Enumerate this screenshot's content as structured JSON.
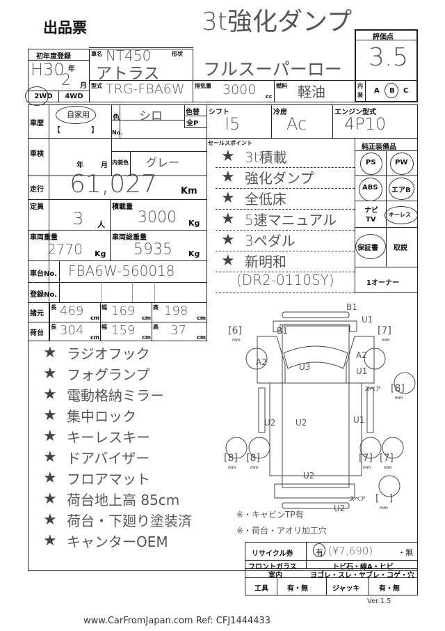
{
  "title": "出品票",
  "headline": {
    "line1": "3t強化ダンプ",
    "line2": "フルスーパーロー"
  },
  "registration": {
    "label": "初年度登録",
    "year": "H30",
    "year_unit": "年",
    "month": "2",
    "month_unit": "月",
    "drive_options": [
      "2WD",
      "4WD"
    ],
    "drive_selected": "2WD"
  },
  "car": {
    "name_label": "車名",
    "name": "NT450",
    "model_name": "アトラス",
    "shape_label": "形状",
    "type_label": "型式",
    "type": "TRG-FBA6W",
    "displacement_label": "排気量",
    "displacement": "3000",
    "displacement_unit": "cc",
    "fuel_label": "燃料",
    "fuel": "軽油"
  },
  "score": {
    "label": "評価点",
    "value": "3.5",
    "interior_label": "内装",
    "interior_options": [
      "A",
      "B",
      "C"
    ],
    "interior_selected": "B"
  },
  "history": {
    "label": "車歴",
    "value": "自家用",
    "brackets": "【　　　　】"
  },
  "color": {
    "label": "色",
    "value": "シロ",
    "no_label": "No.",
    "repaint_label": "色替",
    "allp_label": "全P",
    "interior_color_label": "内装色",
    "interior_color": "グレー"
  },
  "shift": {
    "label": "シフト",
    "value": "I5"
  },
  "ac": {
    "label": "冷房",
    "value": "Ac"
  },
  "engine": {
    "label": "エンジン型式",
    "value": "4P10"
  },
  "inspection": {
    "label": "車検",
    "year_unit": "年",
    "month_unit": "月"
  },
  "mileage": {
    "label": "走行",
    "value": "61,027",
    "unit": "Km"
  },
  "capacity": {
    "label": "定員",
    "value": "3",
    "unit": "人"
  },
  "load": {
    "label": "積載量",
    "value": "3000",
    "unit": "Kg"
  },
  "weight": {
    "label": "車両重量",
    "value": "2770",
    "unit": "Kg"
  },
  "gross_weight": {
    "label": "車両総重量",
    "value": "5935",
    "unit": "Kg"
  },
  "chassis": {
    "label": "車台No.",
    "value": "FBA6W-560018"
  },
  "reg_no": {
    "label": "登録No."
  },
  "dims": {
    "label": "諸元",
    "l_label": "長",
    "l": "469",
    "w_label": "幅",
    "w": "169",
    "h_label": "高",
    "h": "198",
    "unit": "cm"
  },
  "bed": {
    "label": "荷台",
    "l_label": "長",
    "l": "304",
    "w_label": "幅",
    "w": "159",
    "h_label": "高",
    "h": "37",
    "unit": "cm"
  },
  "sales_points": {
    "label": "セールスポイント",
    "items": [
      "3t積載",
      "強化ダンプ",
      "全低床",
      "5速マニュアル",
      "3ペダル",
      "新明和",
      "(DR2-0110SY)"
    ]
  },
  "equipment": {
    "label": "純正装備品",
    "items": [
      "PS",
      "PW",
      "ABS",
      "エアB",
      "ナビ",
      "TV",
      "キーレス",
      "保証書",
      "取説",
      "1オーナー"
    ],
    "circled": [
      "PS",
      "PW",
      "ABS",
      "エアB",
      "キーレス",
      "保証書"
    ]
  },
  "options": [
    "ラジオフック",
    "フォグランプ",
    "電動格納ミラー",
    "集中ロック",
    "キーレスキー",
    "ドアバイザー",
    "フロアマット",
    "荷台地上高 85cm",
    "荷台・下廻り塗装済",
    "キャンターOEM"
  ],
  "diagram": {
    "marks": [
      "B1",
      "U1",
      "B1",
      "A2",
      "A2",
      "U3",
      "U1",
      "U2",
      "U2",
      "U1",
      "U2",
      "U2"
    ],
    "tires": {
      "front_left": "6",
      "front_right": "7",
      "rear_left_outer": "8",
      "rear_left_inner": "8",
      "rear_right_inner": "7",
      "rear_right_outer": "7",
      "spare1": "8",
      "spare2": ""
    },
    "unit": "mm",
    "spare_label": "スペア"
  },
  "notes": [
    "※・キャビンTP有",
    "※・荷台・アオリ加工穴"
  ],
  "recycle": {
    "label": "リサイクル券",
    "yes": "有",
    "amount": "(¥7,690)",
    "no": "・無"
  },
  "windshield": {
    "label": "フロントガラス",
    "value": "トビ石・線A・ヒビ"
  },
  "interior": {
    "label": "室内",
    "value": "ヨゴレ・スレ・ヤブレ・コゲ・穴"
  },
  "tools": {
    "label": "工具",
    "value": "有・無",
    "jack_label": "ジャッキ",
    "jack_value": "有・無"
  },
  "version": "Ver.1.5",
  "footer": "www.CarFromJapan.com Ref: CFJ1444433"
}
